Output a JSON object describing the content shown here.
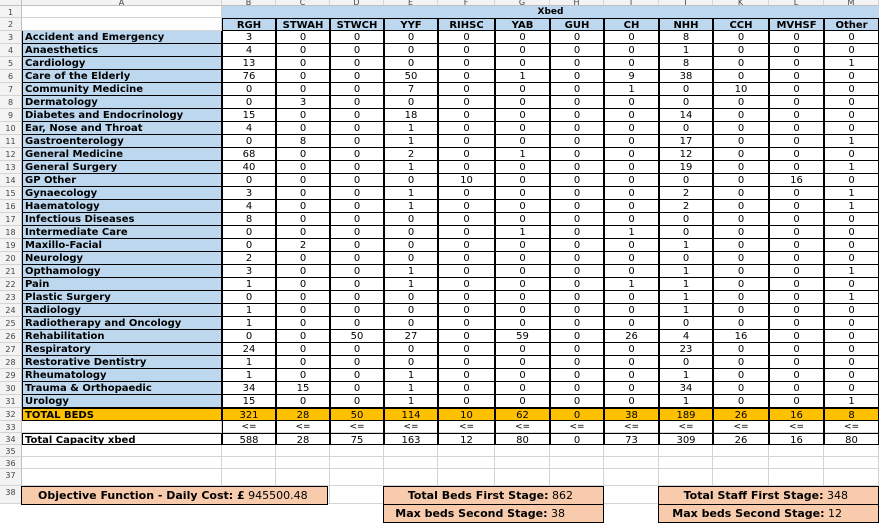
{
  "sheet": {
    "column_letters": [
      "A",
      "B",
      "C",
      "D",
      "E",
      "F",
      "G",
      "H",
      "I",
      "J",
      "K",
      "L",
      "M"
    ],
    "row_numbers": [
      "1",
      "2",
      "3",
      "4",
      "5",
      "6",
      "7",
      "8",
      "9",
      "10",
      "11",
      "12",
      "13",
      "14",
      "15",
      "16",
      "17",
      "18",
      "19",
      "20",
      "21",
      "22",
      "23",
      "24",
      "25",
      "26",
      "27",
      "28",
      "29",
      "30",
      "31",
      "32",
      "33",
      "34",
      "35",
      "36",
      "37",
      "38"
    ],
    "group_header": "Xbed",
    "sites": [
      "RGH",
      "STWAH",
      "STWCH",
      "YYF",
      "RIHSC",
      "YAB",
      "GUH",
      "CH",
      "NHH",
      "CCH",
      "MVHSF",
      "Other"
    ],
    "specialties": [
      {
        "name": "Accident and Emergency",
        "values": [
          "3",
          "0",
          "0",
          "0",
          "0",
          "0",
          "0",
          "0",
          "8",
          "0",
          "0",
          "0"
        ]
      },
      {
        "name": "Anaesthetics",
        "values": [
          "4",
          "0",
          "0",
          "0",
          "0",
          "0",
          "0",
          "0",
          "1",
          "0",
          "0",
          "0"
        ]
      },
      {
        "name": "Cardiology",
        "values": [
          "13",
          "0",
          "0",
          "0",
          "0",
          "0",
          "0",
          "0",
          "8",
          "0",
          "0",
          "1"
        ]
      },
      {
        "name": "Care of the Elderly",
        "values": [
          "76",
          "0",
          "0",
          "50",
          "0",
          "1",
          "0",
          "9",
          "38",
          "0",
          "0",
          "0"
        ]
      },
      {
        "name": "Community Medicine",
        "values": [
          "0",
          "0",
          "0",
          "7",
          "0",
          "0",
          "0",
          "1",
          "0",
          "10",
          "0",
          "0"
        ]
      },
      {
        "name": "Dermatology",
        "values": [
          "0",
          "3",
          "0",
          "0",
          "0",
          "0",
          "0",
          "0",
          "0",
          "0",
          "0",
          "0"
        ]
      },
      {
        "name": "Diabetes and Endocrinology",
        "values": [
          "15",
          "0",
          "0",
          "18",
          "0",
          "0",
          "0",
          "0",
          "14",
          "0",
          "0",
          "0"
        ]
      },
      {
        "name": "Ear, Nose and Throat",
        "values": [
          "4",
          "0",
          "0",
          "1",
          "0",
          "0",
          "0",
          "0",
          "0",
          "0",
          "0",
          "0"
        ]
      },
      {
        "name": "Gastroenterology",
        "values": [
          "0",
          "8",
          "0",
          "1",
          "0",
          "0",
          "0",
          "0",
          "17",
          "0",
          "0",
          "1"
        ]
      },
      {
        "name": "General Medicine",
        "values": [
          "68",
          "0",
          "0",
          "2",
          "0",
          "1",
          "0",
          "0",
          "12",
          "0",
          "0",
          "0"
        ]
      },
      {
        "name": "General Surgery",
        "values": [
          "40",
          "0",
          "0",
          "1",
          "0",
          "0",
          "0",
          "0",
          "19",
          "0",
          "0",
          "1"
        ]
      },
      {
        "name": "GP Other",
        "values": [
          "0",
          "0",
          "0",
          "0",
          "10",
          "0",
          "0",
          "0",
          "0",
          "0",
          "16",
          "0"
        ]
      },
      {
        "name": "Gynaecology",
        "values": [
          "3",
          "0",
          "0",
          "1",
          "0",
          "0",
          "0",
          "0",
          "2",
          "0",
          "0",
          "1"
        ]
      },
      {
        "name": "Haematology",
        "values": [
          "4",
          "0",
          "0",
          "1",
          "0",
          "0",
          "0",
          "0",
          "2",
          "0",
          "0",
          "1"
        ]
      },
      {
        "name": "Infectious Diseases",
        "values": [
          "8",
          "0",
          "0",
          "0",
          "0",
          "0",
          "0",
          "0",
          "0",
          "0",
          "0",
          "0"
        ]
      },
      {
        "name": "Intermediate Care",
        "values": [
          "0",
          "0",
          "0",
          "0",
          "0",
          "1",
          "0",
          "1",
          "0",
          "0",
          "0",
          "0"
        ]
      },
      {
        "name": "Maxillo-Facial",
        "values": [
          "0",
          "2",
          "0",
          "0",
          "0",
          "0",
          "0",
          "0",
          "1",
          "0",
          "0",
          "0"
        ]
      },
      {
        "name": "Neurology",
        "values": [
          "2",
          "0",
          "0",
          "0",
          "0",
          "0",
          "0",
          "0",
          "0",
          "0",
          "0",
          "0"
        ]
      },
      {
        "name": "Opthamology",
        "values": [
          "3",
          "0",
          "0",
          "1",
          "0",
          "0",
          "0",
          "0",
          "1",
          "0",
          "0",
          "1"
        ]
      },
      {
        "name": "Pain",
        "values": [
          "1",
          "0",
          "0",
          "1",
          "0",
          "0",
          "0",
          "1",
          "1",
          "0",
          "0",
          "0"
        ]
      },
      {
        "name": "Plastic Surgery",
        "values": [
          "0",
          "0",
          "0",
          "0",
          "0",
          "0",
          "0",
          "0",
          "1",
          "0",
          "0",
          "1"
        ]
      },
      {
        "name": "Radiology",
        "values": [
          "1",
          "0",
          "0",
          "0",
          "0",
          "0",
          "0",
          "0",
          "1",
          "0",
          "0",
          "0"
        ]
      },
      {
        "name": "Radiotherapy and Oncology",
        "values": [
          "1",
          "0",
          "0",
          "0",
          "0",
          "0",
          "0",
          "0",
          "0",
          "0",
          "0",
          "0"
        ]
      },
      {
        "name": "Rehabilitation",
        "values": [
          "0",
          "0",
          "50",
          "27",
          "0",
          "59",
          "0",
          "26",
          "4",
          "16",
          "0",
          "0"
        ]
      },
      {
        "name": "Respiratory",
        "values": [
          "24",
          "0",
          "0",
          "0",
          "0",
          "0",
          "0",
          "0",
          "23",
          "0",
          "0",
          "0"
        ]
      },
      {
        "name": "Restorative Dentistry",
        "values": [
          "1",
          "0",
          "0",
          "0",
          "0",
          "0",
          "0",
          "0",
          "0",
          "0",
          "0",
          "0"
        ]
      },
      {
        "name": "Rheumatology",
        "values": [
          "1",
          "0",
          "0",
          "1",
          "0",
          "0",
          "0",
          "0",
          "1",
          "0",
          "0",
          "0"
        ]
      },
      {
        "name": "Trauma & Orthopaedic",
        "values": [
          "34",
          "15",
          "0",
          "1",
          "0",
          "0",
          "0",
          "0",
          "34",
          "0",
          "0",
          "0"
        ]
      },
      {
        "name": "Urology",
        "values": [
          "15",
          "0",
          "0",
          "1",
          "0",
          "0",
          "0",
          "0",
          "1",
          "0",
          "0",
          "1"
        ]
      }
    ],
    "total_beds": {
      "label": "TOTAL BEDS",
      "values": [
        "321",
        "28",
        "50",
        "114",
        "10",
        "62",
        "0",
        "38",
        "189",
        "26",
        "16",
        "8"
      ]
    },
    "constraint_symbol": "<=",
    "total_capacity": {
      "label": "Total Capacity xbed",
      "values": [
        "588",
        "28",
        "75",
        "163",
        "12",
        "80",
        "0",
        "73",
        "309",
        "26",
        "16",
        "80"
      ]
    },
    "summary": {
      "objective_label": "Objective Function - Daily Cost: £",
      "objective_value": "945500.48",
      "total_beds_first_label": "Total Beds First Stage:",
      "total_beds_first_value": "862",
      "max_beds_second_label": "Max beds Second Stage:",
      "max_beds_second_value": "38",
      "total_staff_first_label": "Total Staff First Stage:",
      "total_staff_first_value": "348",
      "max_beds_second_label_2": "Max beds Second Stage:",
      "max_beds_second_value_2": "12"
    },
    "colors": {
      "header_blue": "#bdd7ee",
      "total_orange": "#ffc000",
      "summary_peach": "#f8cbad",
      "grid": "#d4d4d4"
    }
  }
}
